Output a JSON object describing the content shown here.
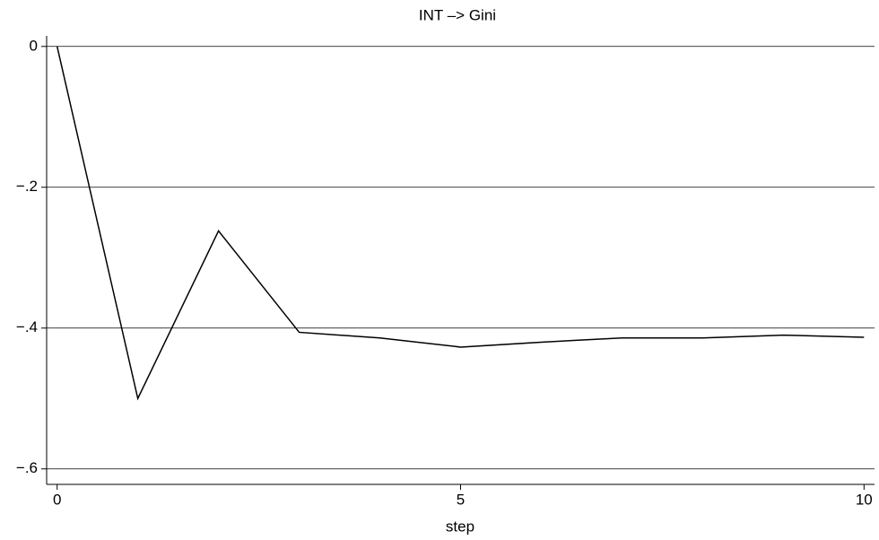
{
  "chart_data": {
    "type": "line",
    "title": "INT –> Gini",
    "x_label": "step",
    "x": [
      0,
      1,
      2,
      3,
      4,
      5,
      6,
      7,
      8,
      9,
      10
    ],
    "series": [
      {
        "name": "INT –> Gini",
        "color": "#000000",
        "values": [
          0,
          -0.5,
          -0.262,
          -0.406,
          -0.414,
          -0.427,
          -0.42,
          -0.414,
          -0.414,
          -0.41,
          -0.413
        ]
      }
    ],
    "xlim": [
      -0.13,
      10.13
    ],
    "xticks": [
      0,
      5,
      10
    ],
    "ylim": [
      -0.622,
      0.015
    ],
    "yticks": [
      0,
      {
        "value": -0.2,
        "label": "−.2"
      },
      {
        "value": -0.4,
        "label": "−.4"
      },
      {
        "value": -0.6,
        "label": "−.6"
      }
    ],
    "grid": true
  }
}
